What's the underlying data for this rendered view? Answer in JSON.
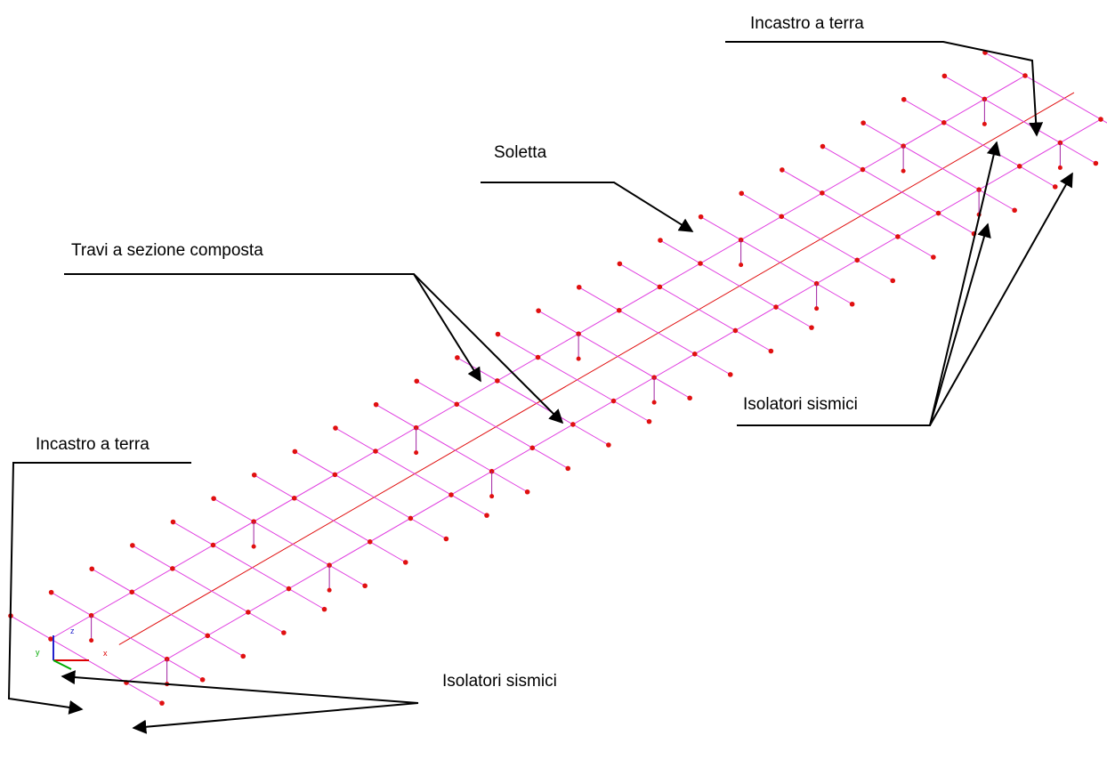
{
  "labels": {
    "top_fixed": "Incastro a terra",
    "slab": "Soletta",
    "beams": "Travi a sezione composta",
    "top_isolators": "Isolatori sismici",
    "bottom_fixed": "Incastro a terra",
    "bottom_isolators": "Isolatori sismici"
  },
  "axes": {
    "x": "x",
    "y": "y",
    "z": "z"
  }
}
